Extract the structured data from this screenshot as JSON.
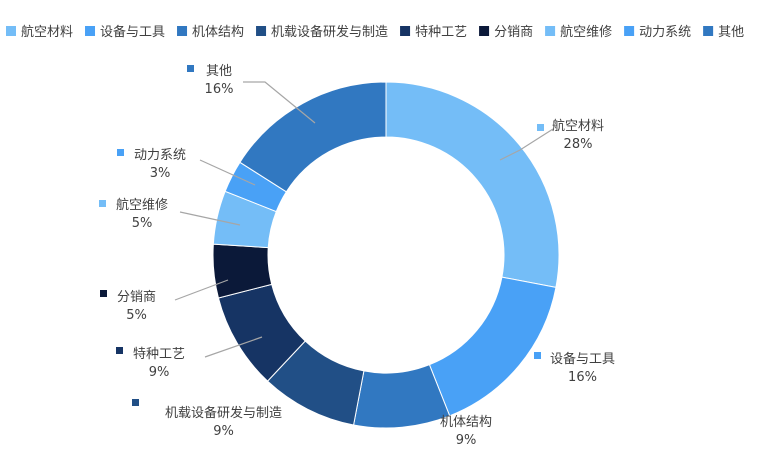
{
  "chart_data": {
    "type": "donut",
    "legend_position": "top",
    "series": [
      {
        "name": "航空材料",
        "value": 28,
        "label": "28%",
        "color": "#74BDF7"
      },
      {
        "name": "设备与工具",
        "value": 16,
        "label": "16%",
        "color": "#49A1F6"
      },
      {
        "name": "机体结构",
        "value": 9,
        "label": "9%",
        "color": "#3178C1"
      },
      {
        "name": "机载设备研发与制造",
        "value": 9,
        "label": "9%",
        "color": "#214F86"
      },
      {
        "name": "特种工艺",
        "value": 9,
        "label": "9%",
        "color": "#163464"
      },
      {
        "name": "分销商",
        "value": 5,
        "label": "5%",
        "color": "#0B1939"
      },
      {
        "name": "航空维修",
        "value": 5,
        "label": "5%",
        "color": "#74BDF7"
      },
      {
        "name": "动力系统",
        "value": 3,
        "label": "3%",
        "color": "#49A1F6"
      },
      {
        "name": "其他",
        "value": 16,
        "label": "16%",
        "color": "#3178C1"
      }
    ]
  }
}
